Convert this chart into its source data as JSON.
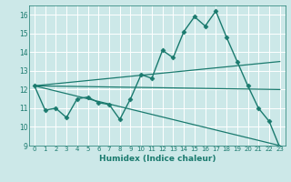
{
  "xlabel": "Humidex (Indice chaleur)",
  "xlim": [
    -0.5,
    23.5
  ],
  "ylim": [
    9,
    16.5
  ],
  "yticks": [
    9,
    10,
    11,
    12,
    13,
    14,
    15,
    16
  ],
  "xticks": [
    0,
    1,
    2,
    3,
    4,
    5,
    6,
    7,
    8,
    9,
    10,
    11,
    12,
    13,
    14,
    15,
    16,
    17,
    18,
    19,
    20,
    21,
    22,
    23
  ],
  "bg_color": "#cce8e8",
  "grid_color": "#ffffff",
  "line_color": "#1a7a6e",
  "lines": [
    {
      "x": [
        0,
        1,
        2,
        3,
        4,
        5,
        6,
        7,
        8,
        9,
        10,
        11,
        12,
        13,
        14,
        15,
        16,
        17,
        18,
        19,
        20,
        21,
        22,
        23
      ],
      "y": [
        12.2,
        10.9,
        11.0,
        10.5,
        11.5,
        11.6,
        11.3,
        11.2,
        10.4,
        11.5,
        12.8,
        12.6,
        14.1,
        13.7,
        15.1,
        15.9,
        15.4,
        16.2,
        14.8,
        13.5,
        12.2,
        11.0,
        10.3,
        8.9
      ],
      "marker": "D",
      "markersize": 2.5,
      "linewidth": 1.0
    },
    {
      "x": [
        0,
        23
      ],
      "y": [
        12.2,
        9.0
      ],
      "marker": null,
      "linewidth": 0.9
    },
    {
      "x": [
        0,
        23
      ],
      "y": [
        12.2,
        12.0
      ],
      "marker": null,
      "linewidth": 0.9
    },
    {
      "x": [
        0,
        23
      ],
      "y": [
        12.2,
        13.5
      ],
      "marker": null,
      "linewidth": 0.9
    }
  ]
}
